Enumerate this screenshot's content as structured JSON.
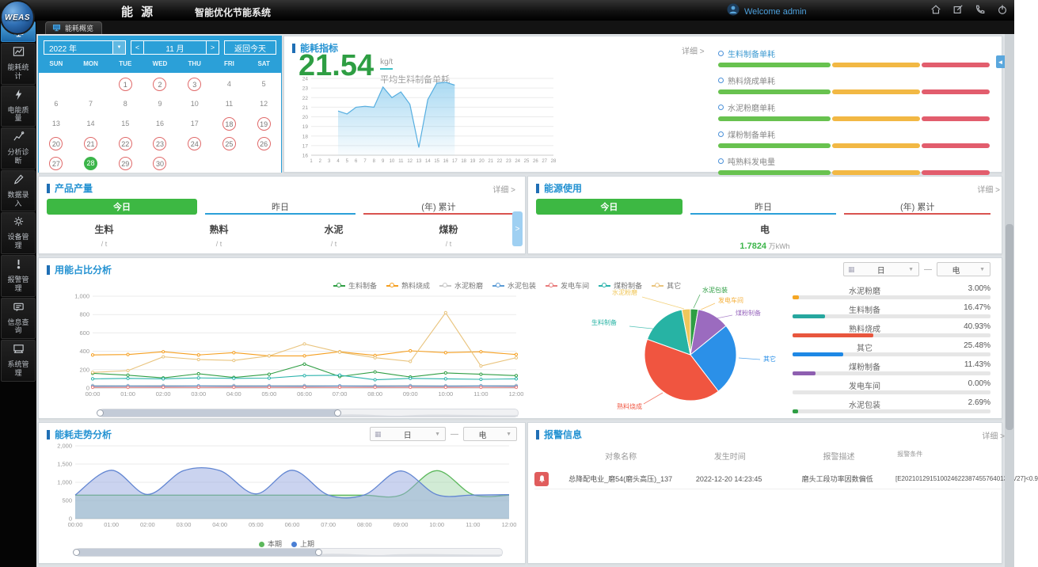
{
  "header": {
    "logo_text": "WEAS",
    "brand": "能 源",
    "app_title": "智能优化节能系统",
    "welcome": "Welcome admin"
  },
  "tab_bar": {
    "active_tab": "能耗概览"
  },
  "sidebar": {
    "items": [
      {
        "label": "",
        "icon": "overview-icon",
        "active": true
      },
      {
        "label": "能耗统计",
        "icon": "stats-icon"
      },
      {
        "label": "电能质量",
        "icon": "power-quality-icon"
      },
      {
        "label": "分析诊断",
        "icon": "analysis-icon"
      },
      {
        "label": "数据录入",
        "icon": "data-entry-icon"
      },
      {
        "label": "设备管理",
        "icon": "device-icon"
      },
      {
        "label": "报警管理",
        "icon": "alarm-manage-icon"
      },
      {
        "label": "信息查询",
        "icon": "info-query-icon"
      },
      {
        "label": "系统管理",
        "icon": "system-icon"
      }
    ]
  },
  "calendar": {
    "year": "2022 年",
    "month": "11 月",
    "today_button": "返回今天",
    "weekdays": [
      "SUN",
      "MON",
      "TUE",
      "WED",
      "THU",
      "FRI",
      "SAT"
    ],
    "lead_blanks": 2,
    "days_in_month": 30,
    "red_days": [
      1,
      2,
      3,
      18,
      19,
      20,
      21,
      22,
      23,
      24,
      25,
      26,
      27,
      29,
      30
    ],
    "green_days": [
      28
    ]
  },
  "kpi": {
    "title": "能耗指标",
    "detail_link": "详细 >",
    "value": "21.54",
    "unit": "kg/t",
    "value_label": "平均生料制备单耗",
    "chart_data": {
      "type": "area",
      "x": [
        "1",
        "2",
        "3",
        "4",
        "5",
        "6",
        "7",
        "8",
        "9",
        "10",
        "11",
        "12",
        "13",
        "14",
        "15",
        "16",
        "17",
        "18",
        "19",
        "20",
        "21",
        "22",
        "23",
        "24",
        "25",
        "26",
        "27",
        "28"
      ],
      "values": [
        null,
        null,
        null,
        20.6,
        20.3,
        21.0,
        21.1,
        21.0,
        23.1,
        22.0,
        22.6,
        21.3,
        16.8,
        21.8,
        23.5,
        23.6,
        23.3,
        null,
        null,
        null,
        null,
        null,
        null,
        null,
        null,
        null,
        null,
        null
      ],
      "ylim": [
        16,
        24
      ],
      "yticks": [
        16,
        17,
        18,
        19,
        20,
        21,
        22,
        23,
        24
      ],
      "line_color": "#56aee0",
      "fill_top": "rgba(125,198,236,0.65)",
      "fill_bottom": "rgba(125,198,236,0.05)"
    },
    "indicators": [
      {
        "label": "生料制备单耗",
        "label_color": "#3d9ad1"
      },
      {
        "label": "熟料烧成单耗",
        "label_color": "#888888"
      },
      {
        "label": "水泥粉磨单耗",
        "label_color": "#888888"
      },
      {
        "label": "煤粉制备单耗",
        "label_color": "#888888"
      },
      {
        "label": "吨熟料发电量",
        "label_color": "#888888"
      }
    ],
    "indicator_segments": [
      {
        "color": "#68c24f",
        "width_pct": 41
      },
      {
        "color": "#f2b844",
        "width_pct": 32
      },
      {
        "color": "#e25d6d",
        "width_pct": 25
      }
    ]
  },
  "product": {
    "title": "产品产量",
    "detail_link": "详细 >",
    "tabs": [
      {
        "label": "今日",
        "state": "active-green"
      },
      {
        "label": "昨日",
        "state": "blue-underline"
      },
      {
        "label": "(年) 累计",
        "state": "red-underline"
      }
    ],
    "items": [
      {
        "name": "生料",
        "unit": "/ t"
      },
      {
        "name": "熟料",
        "unit": "/ t"
      },
      {
        "name": "水泥",
        "unit": "/ t"
      },
      {
        "name": "煤粉",
        "unit": "/ t"
      }
    ]
  },
  "energy_use": {
    "title": "能源使用",
    "detail_link": "详细 >",
    "tabs": [
      {
        "label": "今日",
        "state": "active-green"
      },
      {
        "label": "昨日",
        "state": "blue-underline"
      },
      {
        "label": "(年) 累计",
        "state": "red-underline"
      }
    ],
    "item": {
      "name": "电",
      "value": "1.7824",
      "unit": " 万kWh"
    }
  },
  "proportion": {
    "title": "用能占比分析",
    "period_select": "日",
    "energy_select": "电",
    "chart_data": {
      "type": "line",
      "x": [
        "00:00",
        "01:00",
        "02:00",
        "03:00",
        "04:00",
        "05:00",
        "06:00",
        "07:00",
        "08:00",
        "09:00",
        "10:00",
        "11:00",
        "12:00"
      ],
      "ylim": [
        0,
        1000
      ],
      "yticks": [
        0,
        200,
        400,
        600,
        800,
        1000
      ],
      "series": [
        {
          "name": "生料制备",
          "color": "#2f9e44",
          "values": [
            160,
            140,
            110,
            155,
            115,
            150,
            260,
            125,
            175,
            120,
            165,
            150,
            135
          ]
        },
        {
          "name": "熟料烧成",
          "color": "#f59f20",
          "values": [
            360,
            365,
            395,
            360,
            385,
            350,
            350,
            395,
            355,
            405,
            385,
            395,
            365
          ]
        },
        {
          "name": "水泥粉磨",
          "color": "#c8c8c8",
          "values": [
            28,
            27,
            28,
            26,
            28,
            27,
            28,
            26,
            27,
            28,
            26,
            27,
            28
          ]
        },
        {
          "name": "水泥包装",
          "color": "#5b9bd5",
          "values": [
            20,
            21,
            20,
            22,
            20,
            21,
            20,
            22,
            20,
            21,
            20,
            22,
            20
          ]
        },
        {
          "name": "发电车间",
          "color": "#e87c7c",
          "values": [
            8,
            8,
            8,
            8,
            8,
            8,
            8,
            8,
            8,
            8,
            8,
            8,
            8
          ]
        },
        {
          "name": "煤粉制备",
          "color": "#2bb3ac",
          "values": [
            100,
            105,
            100,
            110,
            105,
            108,
            135,
            140,
            90,
            105,
            100,
            95,
            100
          ]
        },
        {
          "name": "其它",
          "color": "#e9c47e",
          "values": [
            170,
            190,
            340,
            310,
            300,
            350,
            480,
            390,
            330,
            290,
            820,
            240,
            330
          ]
        }
      ]
    },
    "pie_data": {
      "type": "pie",
      "slices": [
        {
          "name": "水泥包装",
          "value": 2.69,
          "color": "#2e9e43"
        },
        {
          "name": "发电车间",
          "value": 0.0,
          "color": "#f5b13d"
        },
        {
          "name": "煤粉制备",
          "value": 11.43,
          "color": "#9b6bbf"
        },
        {
          "name": "其它",
          "value": 25.48,
          "color": "#2b90e8"
        },
        {
          "name": "熟料烧成",
          "value": 40.93,
          "color": "#f05540"
        },
        {
          "name": "生料制备",
          "value": 16.47,
          "color": "#27b3a4"
        },
        {
          "name": "水泥粉磨",
          "value": 3.0,
          "color": "#f0c75c"
        }
      ]
    },
    "ranking": [
      {
        "name": "水泥粉磨",
        "pct": "3.00%",
        "value": 3.0,
        "color": "#f5a623"
      },
      {
        "name": "生料制备",
        "pct": "16.47%",
        "value": 16.47,
        "color": "#27a79f"
      },
      {
        "name": "熟料烧成",
        "pct": "40.93%",
        "value": 40.93,
        "color": "#e8563e"
      },
      {
        "name": "其它",
        "pct": "25.48%",
        "value": 25.48,
        "color": "#1e88e5"
      },
      {
        "name": "煤粉制备",
        "pct": "11.43%",
        "value": 11.43,
        "color": "#8e5fb0"
      },
      {
        "name": "发电车间",
        "pct": "0.00%",
        "value": 0,
        "color": "#999999"
      },
      {
        "name": "水泥包装",
        "pct": "2.69%",
        "value": 2.69,
        "color": "#2e9e43"
      }
    ]
  },
  "trend": {
    "title": "能耗走势分析",
    "period_select": "日",
    "energy_select": "电",
    "chart_data": {
      "type": "area",
      "x": [
        "00:00",
        "01:00",
        "02:00",
        "03:00",
        "04:00",
        "05:00",
        "06:00",
        "07:00",
        "08:00",
        "09:00",
        "10:00",
        "11:00",
        "12:00"
      ],
      "ylim": [
        0,
        2000
      ],
      "yticks": [
        0,
        500,
        1000,
        1500,
        2000
      ],
      "series": [
        {
          "name": "本期",
          "color": "#5cb85c",
          "fill": "rgba(140,205,150,0.40)",
          "values": [
            645,
            645,
            645,
            645,
            645,
            645,
            645,
            645,
            645,
            645,
            1320,
            660,
            645
          ]
        },
        {
          "name": "上期",
          "color": "#6286d2",
          "fill": "rgba(150,168,224,0.50)",
          "values": [
            650,
            1330,
            665,
            1320,
            1320,
            680,
            1330,
            650,
            655,
            1310,
            660,
            650,
            660
          ]
        }
      ]
    },
    "legend": [
      {
        "label": "本期",
        "color": "#5cb85c"
      },
      {
        "label": "上期",
        "color": "#4a7fd4"
      }
    ]
  },
  "alarm": {
    "title": "报警信息",
    "detail_link": "详细 >",
    "columns": [
      "对象名称",
      "发生时间",
      "报警描述",
      "报警条件"
    ],
    "rows": [
      {
        "name": "总降配电业_磨54(磨头高压)_137",
        "time": "2022-12-20 14:23:45",
        "desc": "磨头工段功率因数偏低",
        "cond": "[E2021012915100246223874557640137.V27]<0.9"
      }
    ]
  }
}
